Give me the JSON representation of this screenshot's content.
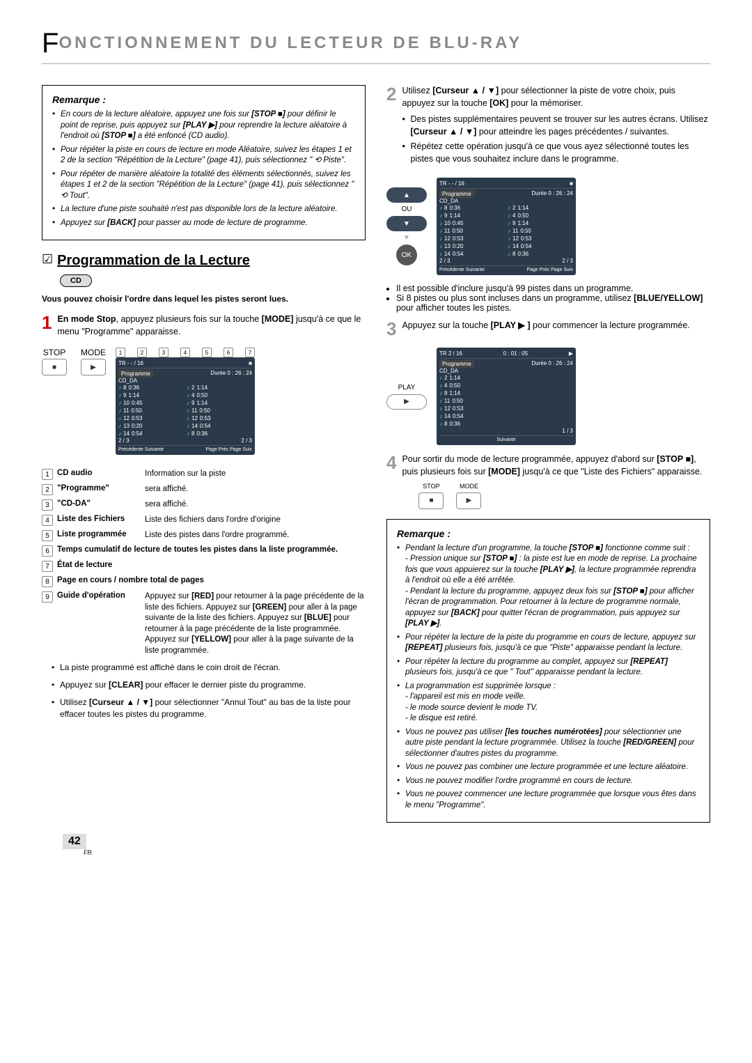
{
  "chapter": {
    "big_letter": "F",
    "rest": "ONCTIONNEMENT DU LECTEUR DE BLU-RAY"
  },
  "left": {
    "remark": {
      "title": "Remarque :",
      "items": [
        "En cours de la lecture aléatoire, appuyez une fois sur [STOP ■] pour définir le point de reprise, puis appuyez sur [PLAY ▶] pour reprendre la lecture aléatoire à l'endroit où [STOP ■] a été enfoncé (CD audio).",
        "Pour répéter la piste en cours de lecture en mode Aléatoire, suivez les étapes 1 et 2 de la section \"Répétition de la Lecture\" (page 41), puis sélectionnez \" ⟲ Piste\".",
        "Pour répéter de manière aléatoire la totalité des éléments sélectionnés, suivez les étapes 1 et 2 de la section \"Répétition de la Lecture\" (page 41), puis sélectionnez \" ⟲ Tout\".",
        "La lecture d'une piste souhaité n'est pas disponible lors de la lecture aléatoire.",
        "Appuyez sur [BACK] pour passer au mode de lecture de programme."
      ]
    },
    "section_title": "Programmation de la Lecture",
    "cd_badge": "CD",
    "intro": "Vous pouvez choisir l'ordre dans lequel les pistes seront lues.",
    "step1": {
      "num": "1",
      "text": "En mode Stop, appuyez plusieurs fois sur la touche [MODE] jusqu'à ce que le menu \"Programme\" apparaisse."
    },
    "stop_label": "STOP",
    "mode_label": "MODE",
    "callout_nums": [
      "1",
      "2",
      "3",
      "4",
      "5",
      "6",
      "7",
      "8",
      "9"
    ],
    "screen1": {
      "tr": "TR  - - / 16",
      "prog": "Programme",
      "cdda": "CD_DA",
      "duree": "Durée",
      "time": "0 : 26 : 24",
      "left_rows": [
        {
          "n": "8",
          "t": "0:36"
        },
        {
          "n": "9",
          "t": "1:14"
        },
        {
          "n": "10",
          "t": "0:45"
        },
        {
          "n": "11",
          "t": "0:50"
        },
        {
          "n": "12",
          "t": "0:53"
        },
        {
          "n": "13",
          "t": "0:20"
        },
        {
          "n": "14",
          "t": "0:54"
        }
      ],
      "right_rows": [
        {
          "n": "2",
          "t": "1:14"
        },
        {
          "n": "4",
          "t": "0:50"
        },
        {
          "n": "9",
          "t": "1:14"
        },
        {
          "n": "11",
          "t": "0:50"
        },
        {
          "n": "12",
          "t": "0:53"
        },
        {
          "n": "14",
          "t": "0:54"
        },
        {
          "n": "8",
          "t": "0:36"
        }
      ],
      "pager_l": "2 / 3",
      "pager_r": "2 / 3",
      "foot_l": "Précédente  Suivante",
      "foot_r": "Page Préc  Page Suiv"
    },
    "legend": [
      {
        "n": "1",
        "term": "CD audio",
        "desc": "Information sur la piste"
      },
      {
        "n": "2",
        "term": "\"Programme\"",
        "desc": "sera affiché."
      },
      {
        "n": "3",
        "term": "\"CD-DA\"",
        "desc": "sera affiché."
      },
      {
        "n": "4",
        "term": "Liste des Fichiers",
        "desc": "Liste des fichiers dans l'ordre d'origine"
      },
      {
        "n": "5",
        "term": "Liste programmée",
        "desc": "Liste des pistes dans l'ordre programmé."
      },
      {
        "n": "6",
        "term": "Temps cumulatif de lecture de toutes les pistes dans la liste programmée.",
        "desc": ""
      },
      {
        "n": "7",
        "term": "État de lecture",
        "desc": ""
      },
      {
        "n": "8",
        "term": "Page en cours / nombre total de pages",
        "desc": ""
      },
      {
        "n": "9",
        "term": "Guide d'opération",
        "desc": "Appuyez sur [RED] pour retourner à la page précédente de la liste des fichiers. Appuyez sur [GREEN] pour aller à la page suivante de la liste des fichiers. Appuyez sur [BLUE] pour retourner à la page précédente de la liste programmée. Appuyez sur [YELLOW] pour aller à la page suivante de la liste programmée."
      }
    ],
    "post_bullets": [
      "La piste programmé est affiché dans le coin droit de l'écran.",
      "Appuyez sur [CLEAR] pour effacer le dernier piste du programme.",
      "Utilisez [Curseur ▲ / ▼] pour sélectionner \"Annul Tout\" au bas de la liste pour effacer toutes les pistes du programme."
    ]
  },
  "right": {
    "step2": {
      "num": "2",
      "body": "Utilisez [Curseur ▲ / ▼] pour sélectionner la piste de votre choix, puis appuyez sur la touche [OK] pour la mémoriser.",
      "bullets": [
        "Des pistes supplémentaires peuvent se trouver sur les autres écrans. Utilisez [Curseur ▲ / ▼] pour atteindre les pages précédentes / suivantes.",
        "Répétez cette opération jusqu'à ce que vous ayez sélectionné toutes les pistes que vous souhaitez inclure dans le programme."
      ],
      "ou": "OU",
      "ok": "OK",
      "after_bullets": [
        "Il est possible d'inclure jusqu'à 99 pistes dans un programme.",
        "Si 8 pistes ou plus sont incluses dans un programme, utilisez [BLUE/YELLOW] pour afficher toutes les pistes."
      ]
    },
    "step3": {
      "num": "3",
      "body": "Appuyez sur la touche [PLAY ▶ ] pour commencer la lecture programmée.",
      "play_label": "PLAY"
    },
    "screen3": {
      "tr": "TR  2 / 16",
      "time_top": "0 : 01 : 05",
      "prog": "Programme",
      "cdda": "CD_DA",
      "duree": "Durée",
      "time": "0 : 26 : 24",
      "rows": [
        {
          "n": "2",
          "t": "1:14"
        },
        {
          "n": "4",
          "t": "0:50"
        },
        {
          "n": "9",
          "t": "1:14"
        },
        {
          "n": "11",
          "t": "0:50"
        },
        {
          "n": "12",
          "t": "0:53"
        },
        {
          "n": "14",
          "t": "0:54"
        },
        {
          "n": "8",
          "t": "0:36"
        }
      ],
      "pager": "1 / 3",
      "foot": "Suivante"
    },
    "step4": {
      "num": "4",
      "body": "Pour sortir du mode de lecture programmée, appuyez d'abord sur [STOP ■], puis plusieurs fois sur [MODE] jusqu'à ce que \"Liste des Fichiers\" apparaisse."
    },
    "remark": {
      "title": "Remarque :",
      "items": [
        "Pendant la lecture d'un programme, la touche [STOP ■] fonctionne comme suit :\n- Pression unique sur [STOP ■] : la piste est lue en mode de reprise. La prochaine fois que vous appuierez sur la touche [PLAY ▶], la lecture programmée reprendra à l'endroit où elle a été arrêtée.\n- Pendant la lecture du programme, appuyez deux fois sur [STOP ■] pour afficher l'écran de programmation. Pour retourner à la lecture de programme normale, appuyez sur [BACK] pour quitter l'écran de programmation, puis appuyez sur [PLAY ▶].",
        "Pour répéter la lecture de la piste du programme en cours de lecture, appuyez sur [REPEAT] plusieurs fois, jusqu'à ce que \"Piste\" apparaisse pendant la lecture.",
        "Pour répéter la lecture du programme au complet, appuyez sur [REPEAT] plusieurs fois, jusqu'à ce que \" Tout\" apparaisse pendant la lecture.",
        "La programmation est supprimée lorsque :\n- l'appareil est mis en mode veille.\n- le mode source devient le mode TV.\n- le disque est retiré.",
        "Vous ne pouvez pas utiliser [les touches numérotées] pour sélectionner une autre piste pendant la lecture programmée. Utilisez la touche [RED/GREEN] pour sélectionner d'autres pistes du programme.",
        "Vous ne pouvez pas combiner une lecture programmée et une lecture aléatoire.",
        "Vous ne pouvez modifier l'ordre programmé en cours de lecture.",
        "Vous ne pouvez commencer une lecture programmée que lorsque vous êtes dans le menu \"Programme\"."
      ]
    }
  },
  "page": {
    "num": "42",
    "fr": "FR"
  },
  "colors": {
    "step_red": "#cc0000",
    "step_gray": "#999999",
    "screen_bg": "#2a3a4a",
    "badge_bg": "#dddddd"
  }
}
